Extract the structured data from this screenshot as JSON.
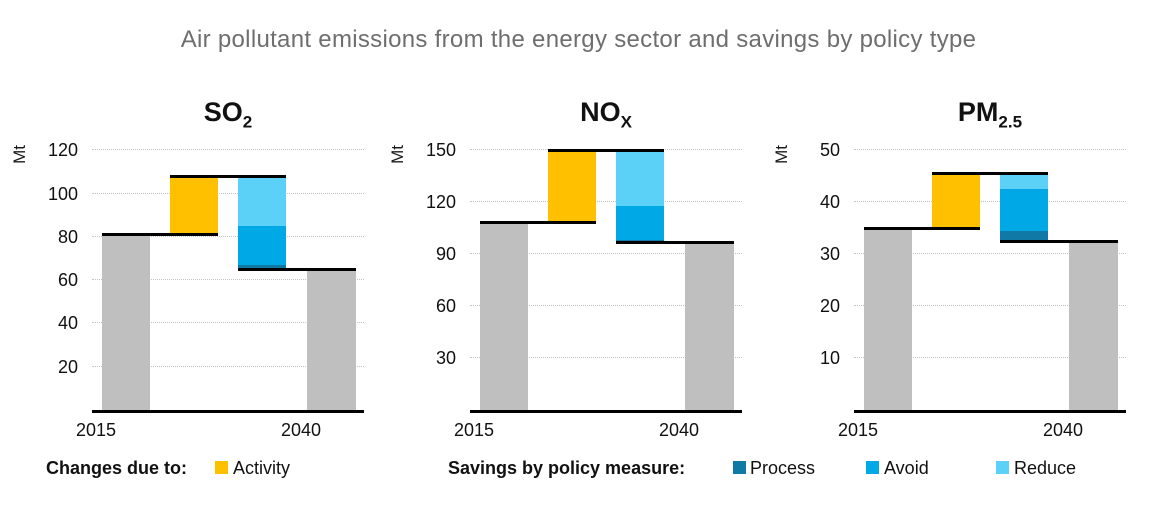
{
  "title": "Air pollutant emissions from the energy sector and savings by policy type",
  "colors": {
    "activity": "#FFC000",
    "process": "#1079A5",
    "avoid": "#00A9E6",
    "reduce": "#5BD1F8",
    "bar_gray": "#BFBFBF",
    "title_gray": "#6E6E6E"
  },
  "legend": {
    "changes_label": "Changes due to:",
    "activity_label": "Activity",
    "savings_label": "Savings by policy measure:",
    "process_label": "Process",
    "avoid_label": "Avoid",
    "reduce_label": "Reduce"
  },
  "chart_data": [
    {
      "type": "bar",
      "subtype": "waterfall",
      "title": "SO2",
      "title_base": "SO",
      "title_sub": "2",
      "ylabel": "Mt",
      "yticks": [
        20,
        40,
        60,
        80,
        100,
        120
      ],
      "ylim": [
        0,
        122.5
      ],
      "x_labels": [
        "2015",
        "2040"
      ],
      "values": {
        "start_2015": 81,
        "activity_top": 108,
        "reduce_to": 85,
        "avoid_to": 67,
        "process_to": 65,
        "end_2040": 65
      },
      "segments_mt": {
        "activity": 27,
        "reduce": 23,
        "avoid": 18,
        "process": 2
      }
    },
    {
      "type": "bar",
      "subtype": "waterfall",
      "title": "NOx",
      "title_base": "NO",
      "title_sub": "X",
      "ylabel": "Mt",
      "yticks": [
        30,
        60,
        90,
        120,
        150
      ],
      "ylim": [
        0,
        153
      ],
      "x_labels": [
        "2015",
        "2040"
      ],
      "values": {
        "start_2015": 108,
        "activity_top": 150,
        "reduce_to": 118,
        "avoid_to": 98,
        "process_to": 97,
        "end_2040": 97
      },
      "segments_mt": {
        "activity": 42,
        "reduce": 32,
        "avoid": 20,
        "process": 1
      }
    },
    {
      "type": "bar",
      "subtype": "waterfall",
      "title": "PM2.5",
      "title_base": "PM",
      "title_sub": "2.5",
      "ylabel": "Mt",
      "yticks": [
        10,
        20,
        30,
        40,
        50
      ],
      "ylim": [
        0,
        51
      ],
      "x_labels": [
        "2015",
        "2040"
      ],
      "values": {
        "start_2015": 35,
        "activity_top": 45.5,
        "reduce_to": 42.5,
        "avoid_to": 34.5,
        "process_to": 32.5,
        "end_2040": 32.5
      },
      "segments_mt": {
        "activity": 10.5,
        "reduce": 3,
        "avoid": 8,
        "process": 2
      }
    }
  ]
}
